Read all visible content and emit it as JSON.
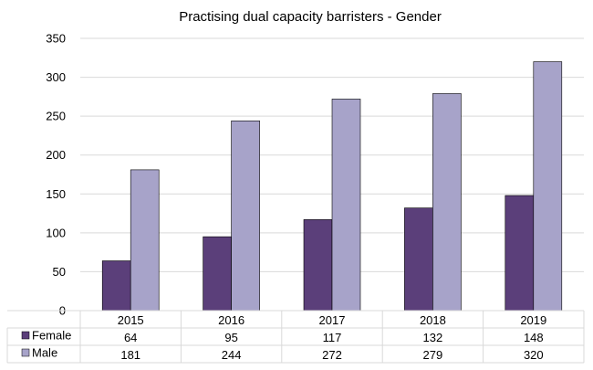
{
  "chart_data": {
    "type": "bar",
    "title": "Practising dual capacity barristers - Gender",
    "categories": [
      "2015",
      "2016",
      "2017",
      "2018",
      "2019"
    ],
    "series": [
      {
        "name": "Female",
        "values": [
          64,
          95,
          117,
          132,
          148
        ],
        "color": "#5b3f7a"
      },
      {
        "name": "Male",
        "values": [
          181,
          244,
          272,
          279,
          320
        ],
        "color": "#a7a3c9"
      }
    ],
    "ylim": [
      0,
      350
    ],
    "yticks": [
      0,
      50,
      100,
      150,
      200,
      250,
      300,
      350
    ],
    "grid": true,
    "legend": "data-table-left"
  }
}
